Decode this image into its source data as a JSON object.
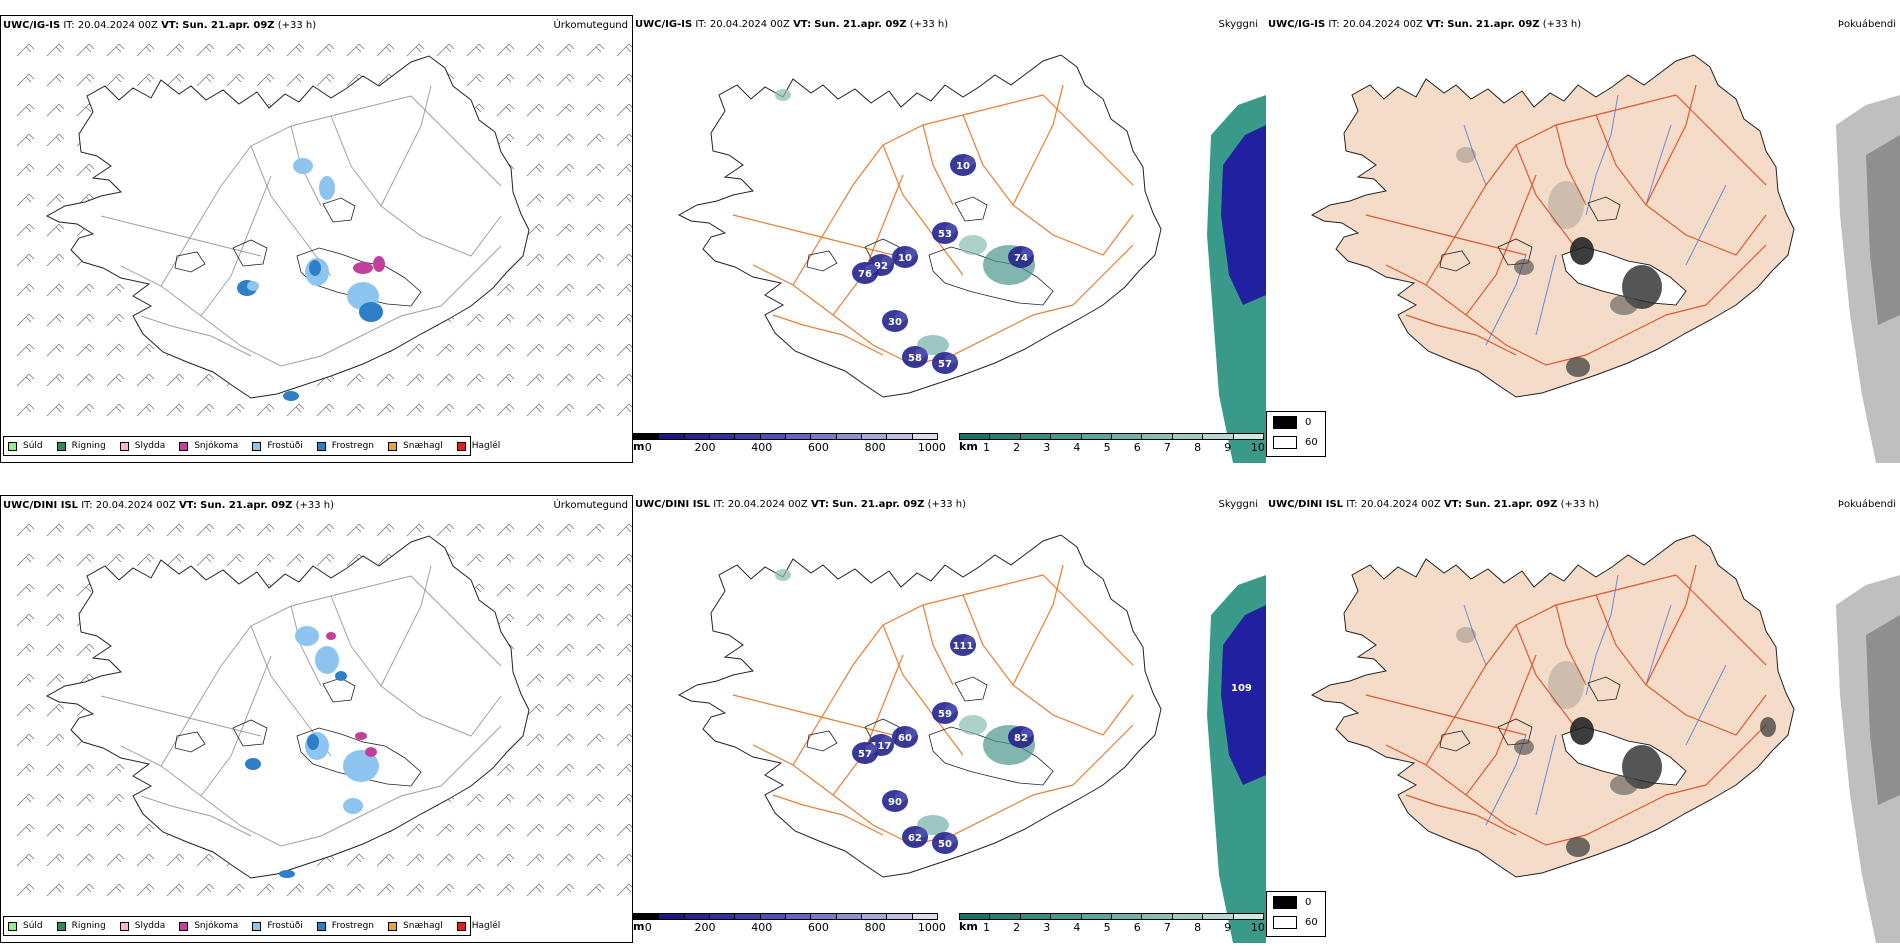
{
  "rows": [
    {
      "model": "UWC/IG-IS",
      "it_label": "IT:",
      "it_value": "20.04.2024 00Z",
      "vt_label": "VT:",
      "vt_value": "Sun. 21.apr. 09Z",
      "lead": "(+33 h)",
      "cloud_labels": [
        "53",
        "74",
        "10",
        "92",
        "76",
        "10",
        "58",
        "57",
        "30"
      ],
      "sea_label": ""
    },
    {
      "model": "UWC/DINI ISL",
      "it_label": "IT:",
      "it_value": "20.04.2024 00Z",
      "vt_label": "VT:",
      "vt_value": "Sun. 21.apr. 09Z",
      "lead": "(+33 h)",
      "cloud_labels": [
        "59",
        "82",
        "111",
        "117",
        "57",
        "60",
        "62",
        "50",
        "90"
      ],
      "sea_label": "109"
    }
  ],
  "panel_titles": {
    "precip": "Úrkomutegund",
    "cloud": "Skyggni",
    "fog": "Þokuábendi"
  },
  "precip_legend": [
    {
      "label": "Súld",
      "color": "#90ee90"
    },
    {
      "label": "Rigning",
      "color": "#2e8b57"
    },
    {
      "label": "Slydda",
      "color": "#f4b6d6"
    },
    {
      "label": "Snjókoma",
      "color": "#c2409a"
    },
    {
      "label": "Frostúði",
      "color": "#8ec4f0"
    },
    {
      "label": "Frostregn",
      "color": "#2f7fc8"
    },
    {
      "label": "Snæhagl",
      "color": "#f0a030"
    },
    {
      "label": "Haglél",
      "color": "#e02020"
    }
  ],
  "cloud_base_scale": {
    "unit": "m",
    "ticks": [
      "0",
      "200",
      "400",
      "600",
      "800",
      "1000"
    ],
    "colors": [
      "#000000",
      "#1a1a7a",
      "#24248c",
      "#303098",
      "#3c3ca4",
      "#5050b0",
      "#6464bc",
      "#7a7ac6",
      "#9090d0",
      "#a8a8da",
      "#c0c0e4",
      "#dcdcf0"
    ]
  },
  "visibility_scale": {
    "unit": "km",
    "ticks": [
      "1",
      "2",
      "3",
      "4",
      "5",
      "6",
      "7",
      "8",
      "9",
      "10"
    ],
    "colors": [
      "#1e6f68",
      "#2a7c74",
      "#3a8a80",
      "#4c978c",
      "#5fa498",
      "#73b1a6",
      "#88beb4",
      "#9ecbc2",
      "#b6d8d0",
      "#d2e8e2"
    ]
  },
  "fog_legend": [
    {
      "label": "0",
      "color": "#000000"
    },
    {
      "label": "60",
      "color": "#ffffff"
    }
  ],
  "colors": {
    "land_fog": "#f4dcc8",
    "roads": "#e87020",
    "rivers": "#5f7fe0",
    "sea_cloud": "#2020a0",
    "sea_vis": "#3a9a8a"
  }
}
